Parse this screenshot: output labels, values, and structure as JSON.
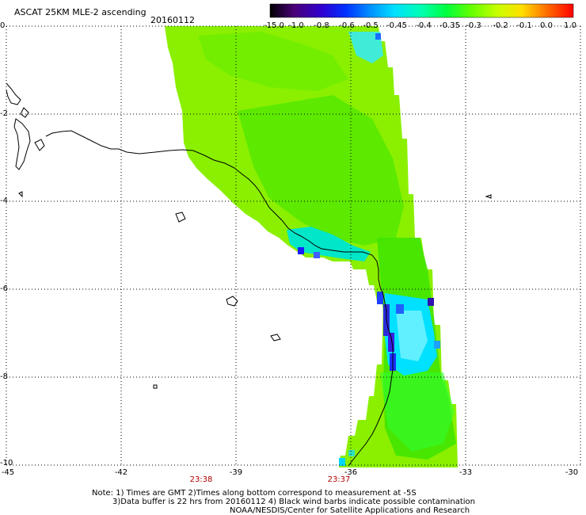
{
  "header": {
    "title": "ASCAT 25KM MLE-2 ascending",
    "date": "20160112"
  },
  "color_scale": {
    "labels": [
      "-15.0",
      "-1.0",
      "-0.8",
      "-0.6",
      "-0.5",
      "-0.45",
      "-0.4",
      "-0.35",
      "-0.3",
      "-0.2",
      "-0.1",
      "0.0",
      "1.0"
    ],
    "colors": [
      "#000000",
      "#5a008c",
      "#2a00ff",
      "#0066ff",
      "#00c8ff",
      "#00ffe0",
      "#00ff80",
      "#3cff00",
      "#a0ff00",
      "#ffff00",
      "#ffa000",
      "#ff3000",
      "#ff0000"
    ]
  },
  "axes": {
    "lat_labels": [
      "0",
      "-2",
      "-4",
      "-6",
      "-8",
      "-10"
    ],
    "lon_labels": [
      "-45",
      "-42",
      "-39",
      "-36",
      "-33",
      "-30"
    ],
    "pass_times": [
      "23:38",
      "23:37"
    ]
  },
  "notes": {
    "line1": "Note: 1) Times are GMT 2)Times along bottom correspond to measurement at -5S",
    "line2": "3)Data buffer is 22 hrs from 20160112 4) Black wind barbs indicate possible contamination",
    "line3": "NOAA/NESDIS/Center for Satellite Applications and Research"
  }
}
